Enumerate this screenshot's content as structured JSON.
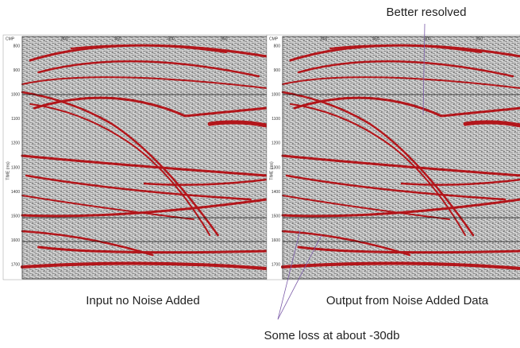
{
  "annotation_top": "Better resolved",
  "annotation_bottom": "Some loss at about -30db",
  "panels": [
    {
      "caption": "Input no Noise Added",
      "x_label": "CMP",
      "x_ticks": [
        "800",
        "850",
        "900",
        "950"
      ],
      "y_label": "TIME (ms)",
      "y_ticks": [
        "800",
        "900",
        "1000",
        "1100",
        "1200",
        "1300",
        "1400",
        "1500",
        "1600",
        "1700"
      ]
    },
    {
      "caption": "Output from Noise Added Data",
      "x_label": "CMP",
      "x_ticks": [
        "800",
        "850",
        "900",
        "950"
      ],
      "y_label": "TIME (ms)",
      "y_ticks": [
        "800",
        "900",
        "1000",
        "1100",
        "1200",
        "1300",
        "1400",
        "1500",
        "1600",
        "1700"
      ]
    }
  ]
}
